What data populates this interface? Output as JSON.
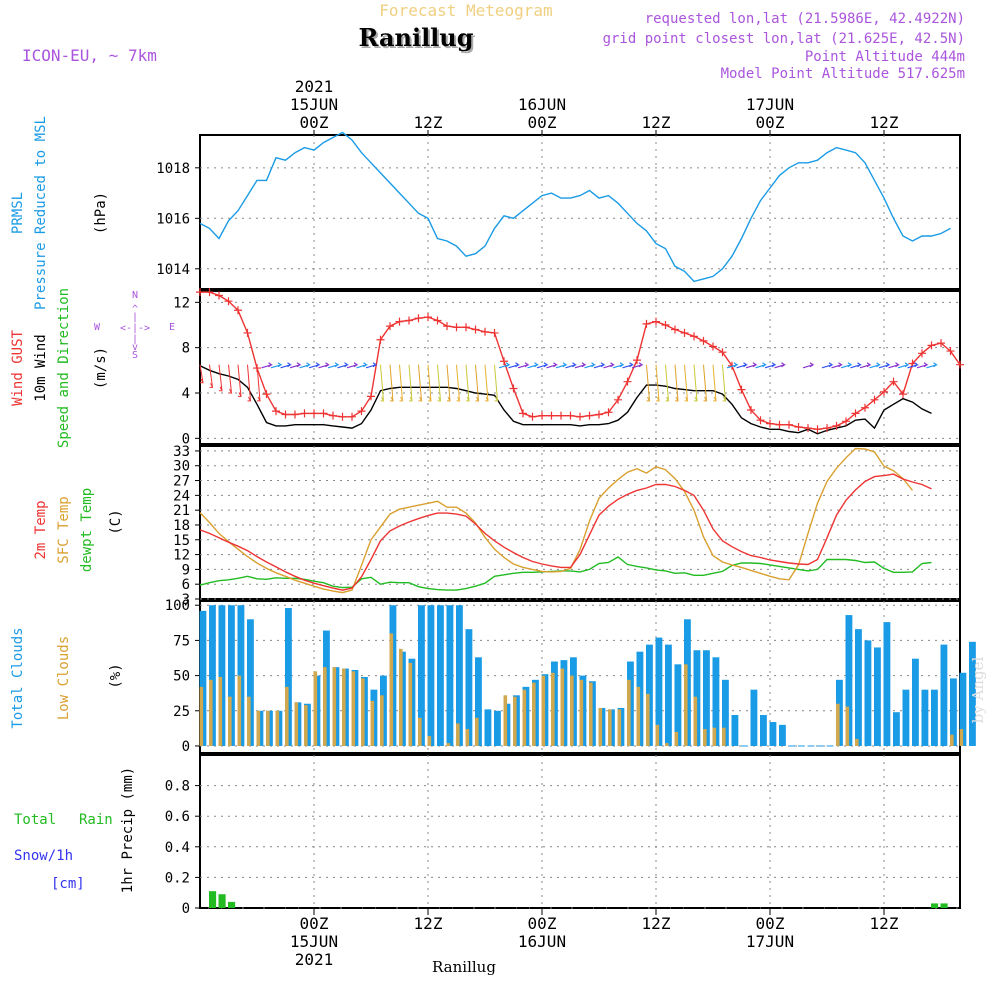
{
  "header": {
    "title": "Forecast Meteogram",
    "station": "Ranillug",
    "model": "ICON-EU, ~ 7km",
    "requested": "requested lon,lat (21.5986E, 42.4922N)",
    "gridpoint": "grid point closest lon,lat (21.625E, 42.5N)",
    "altitude": "Point Altitude 444m",
    "model_altitude": "Model Point Altitude 517.625m",
    "bottom_label": "Ranillug",
    "watermark": "by Angel"
  },
  "time_axis": {
    "top_labels": [
      {
        "t": 12,
        "lines": [
          "2021",
          "15JUN",
          "00Z"
        ]
      },
      {
        "t": 24,
        "lines": [
          "12Z"
        ]
      },
      {
        "t": 36,
        "lines": [
          "16JUN",
          "00Z"
        ]
      },
      {
        "t": 48,
        "lines": [
          "12Z"
        ]
      },
      {
        "t": 60,
        "lines": [
          "17JUN",
          "00Z"
        ]
      },
      {
        "t": 72,
        "lines": [
          "12Z"
        ]
      }
    ],
    "bottom_labels": [
      {
        "t": 12,
        "lines": [
          "00Z",
          "15JUN",
          "2021"
        ]
      },
      {
        "t": 24,
        "lines": [
          "12Z"
        ]
      },
      {
        "t": 36,
        "lines": [
          "00Z",
          "16JUN"
        ]
      },
      {
        "t": 48,
        "lines": [
          "12Z"
        ]
      },
      {
        "t": 60,
        "lines": [
          "00Z",
          "17JUN"
        ]
      },
      {
        "t": 72,
        "lines": [
          "12Z"
        ]
      }
    ]
  },
  "labels": {
    "pressure": [
      "PRMSL",
      "Pressure Reduced to MSL",
      "(hPa)"
    ],
    "wind": [
      "Wind GUST",
      "10m Wind",
      "Speed and Direction",
      "(m/s)"
    ],
    "compass": [
      "N",
      "W",
      "E",
      "S"
    ],
    "temp": [
      "2m Temp",
      "SFC Temp",
      "dewpt Temp",
      "(C)"
    ],
    "cloud": [
      "Total Clouds",
      "Low Clouds",
      "(%)"
    ],
    "precip": [
      "Total",
      "Rain",
      "Snow/1h",
      "[cm]",
      "1hr Precip (mm)"
    ]
  },
  "colors": {
    "pressure": "#1a9be6",
    "gust": "#ee3333",
    "wind10m": "#000000",
    "t2m": "#ee3333",
    "sfc": "#d9a030",
    "dewpt": "#22bb22",
    "total_cloud": "#1a9be6",
    "low_cloud": "#d0a850",
    "rain": "#22bb22",
    "purple": "#aa55dd",
    "blue_text": "#3333ee"
  },
  "chart_data": [
    {
      "type": "line",
      "title": "PRMSL Pressure Reduced to MSL",
      "ylabel": "(hPa)",
      "ylim": [
        1013.2,
        1019.3
      ],
      "yticks": [
        1014,
        1016,
        1018
      ],
      "x_unit": "hours since 14JUN 12Z",
      "series": [
        {
          "name": "PRMSL",
          "x_start": 0,
          "step": 1,
          "values": [
            1015.8,
            1015.6,
            1015.2,
            1015.9,
            1016.3,
            1016.9,
            1017.5,
            1017.5,
            1018.4,
            1018.3,
            1018.6,
            1018.8,
            1018.7,
            1019.0,
            1019.2,
            1019.4,
            1019.1,
            1018.6,
            1018.2,
            1017.8,
            1017.4,
            1017.0,
            1016.6,
            1016.2,
            1016.0,
            1015.2,
            1015.1,
            1014.9,
            1014.5,
            1014.6,
            1014.9,
            1015.6,
            1016.1,
            1016.0,
            1016.3,
            1016.6,
            1016.9,
            1017.0,
            1016.8,
            1016.8,
            1016.9,
            1017.1,
            1016.8,
            1016.9,
            1016.6,
            1016.2,
            1015.8,
            1015.5,
            1015.0,
            1014.8,
            1014.1,
            1013.9,
            1013.5,
            1013.6,
            1013.7,
            1014.0,
            1014.5,
            1015.2,
            1016.0,
            1016.7,
            1017.2,
            1017.7,
            1018.0,
            1018.2,
            1018.2,
            1018.3,
            1018.6,
            1018.8,
            1018.7,
            1018.6,
            1018.2,
            1017.5,
            1016.8,
            1016.0,
            1015.3,
            1015.1,
            1015.3,
            1015.3,
            1015.4,
            1015.6
          ]
        }
      ]
    },
    {
      "type": "line",
      "title": "Wind GUST / 10m Wind Speed and Direction",
      "ylabel": "(m/s)",
      "ylim": [
        -0.5,
        13
      ],
      "yticks": [
        0,
        4,
        8,
        12
      ],
      "series": [
        {
          "name": "Wind GUST",
          "x_start": 0,
          "step": 1,
          "values": [
            12.9,
            12.9,
            12.6,
            12.1,
            11.3,
            9.3,
            6.2,
            3.9,
            2.4,
            2.1,
            2.1,
            2.2,
            2.2,
            2.2,
            2.0,
            1.9,
            1.9,
            2.4,
            3.7,
            8.7,
            9.9,
            10.3,
            10.4,
            10.6,
            10.7,
            10.4,
            9.9,
            9.8,
            9.8,
            9.6,
            9.4,
            9.3,
            6.8,
            4.4,
            2.2,
            1.9,
            2.0,
            2.0,
            2.0,
            2.0,
            1.9,
            2.0,
            2.1,
            2.3,
            3.4,
            5.0,
            6.9,
            10.1,
            10.3,
            10.0,
            9.6,
            9.3,
            9.0,
            8.6,
            8.1,
            7.6,
            6.4,
            4.3,
            2.5,
            1.6,
            1.3,
            1.2,
            1.2,
            1.0,
            0.9,
            0.8,
            0.9,
            1.1,
            1.5,
            2.2,
            2.7,
            3.4,
            4.1,
            5.0,
            3.9,
            6.6,
            7.5,
            8.2,
            8.4,
            7.7,
            6.5
          ]
        },
        {
          "name": "10m Wind",
          "x_start": 0,
          "step": 1,
          "values": [
            6.4,
            6.0,
            5.7,
            5.5,
            5.2,
            4.5,
            3.0,
            1.4,
            1.1,
            1.1,
            1.2,
            1.2,
            1.2,
            1.2,
            1.1,
            1.0,
            0.9,
            1.3,
            2.5,
            4.2,
            4.4,
            4.5,
            4.5,
            4.5,
            4.5,
            4.5,
            4.5,
            4.4,
            4.2,
            4.0,
            3.9,
            3.8,
            2.5,
            1.5,
            1.2,
            1.2,
            1.2,
            1.2,
            1.2,
            1.2,
            1.1,
            1.2,
            1.2,
            1.3,
            1.6,
            2.3,
            3.6,
            4.7,
            4.7,
            4.6,
            4.4,
            4.3,
            4.2,
            4.2,
            4.2,
            3.9,
            3.0,
            1.8,
            1.3,
            1.0,
            0.8,
            0.8,
            0.6,
            0.5,
            0.8,
            0.4,
            0.7,
            0.9,
            1.1,
            1.6,
            1.7,
            0.9,
            2.5,
            3.0,
            3.5,
            3.2,
            2.6,
            2.2
          ]
        }
      ]
    },
    {
      "type": "line",
      "title": "2m Temp / SFC Temp / dewpt Temp",
      "ylabel": "(C)",
      "ylim": [
        3,
        34
      ],
      "yticks": [
        3,
        6,
        9,
        12,
        15,
        18,
        21,
        24,
        27,
        30,
        33
      ],
      "series": [
        {
          "name": "2m Temp",
          "x_start": 0,
          "step": 1,
          "values": [
            17.0,
            16.3,
            15.4,
            14.5,
            13.7,
            12.8,
            11.6,
            10.5,
            9.5,
            8.5,
            7.6,
            6.8,
            6.2,
            5.7,
            5.2,
            4.8,
            5.2,
            7.5,
            11.0,
            14.8,
            16.8,
            17.8,
            18.6,
            19.3,
            19.9,
            20.4,
            20.4,
            20.2,
            19.8,
            18.2,
            16.3,
            14.8,
            13.5,
            12.4,
            11.4,
            10.6,
            10.1,
            9.7,
            9.4,
            9.4,
            12.0,
            16.0,
            20.0,
            21.8,
            23.2,
            24.2,
            25.0,
            25.5,
            26.2,
            26.2,
            25.8,
            25.0,
            24.0,
            21.0,
            17.2,
            14.8,
            13.6,
            12.6,
            11.8,
            11.4,
            10.9,
            10.6,
            10.3,
            10.1,
            10.0,
            11.0,
            15.4,
            20.0,
            23.0,
            25.1,
            26.8,
            27.8,
            28.0,
            28.3,
            27.3,
            26.7,
            26.2,
            25.3
          ]
        },
        {
          "name": "SFC Temp",
          "x_start": 0,
          "step": 1,
          "values": [
            20.5,
            18.5,
            16.3,
            14.6,
            13.1,
            11.6,
            10.3,
            9.2,
            8.3,
            7.6,
            6.8,
            6.2,
            5.6,
            5.0,
            4.6,
            4.3,
            4.8,
            9.8,
            15.0,
            17.6,
            20.2,
            21.2,
            21.6,
            22.0,
            22.4,
            22.8,
            21.6,
            21.6,
            20.4,
            18.4,
            15.5,
            13.1,
            11.4,
            10.1,
            9.4,
            9.0,
            8.6,
            8.5,
            8.6,
            9.2,
            13.0,
            18.8,
            23.4,
            25.5,
            27.2,
            28.7,
            29.4,
            28.5,
            29.8,
            29.2,
            27.4,
            24.8,
            21.0,
            15.6,
            11.8,
            10.5,
            9.9,
            9.4,
            8.8,
            8.2,
            7.6,
            7.1,
            6.9,
            9.9,
            16.3,
            22.4,
            26.8,
            29.5,
            31.6,
            33.5,
            33.4,
            32.8,
            29.9,
            29.0,
            27.4,
            25.0
          ]
        },
        {
          "name": "dewpt Temp",
          "x_start": 0,
          "step": 1,
          "values": [
            5.8,
            6.3,
            6.7,
            6.9,
            7.2,
            7.6,
            7.1,
            7.0,
            7.3,
            7.2,
            7.2,
            7.0,
            6.6,
            6.3,
            5.6,
            5.3,
            5.4,
            7.1,
            7.4,
            6.0,
            6.4,
            6.3,
            6.3,
            5.5,
            5.1,
            4.9,
            4.8,
            4.8,
            5.1,
            5.6,
            6.2,
            7.6,
            7.9,
            8.2,
            8.4,
            8.4,
            8.5,
            8.6,
            8.7,
            8.7,
            8.5,
            9.0,
            10.2,
            10.4,
            11.5,
            10.0,
            9.6,
            9.3,
            8.9,
            8.7,
            8.2,
            8.3,
            7.8,
            7.8,
            8.2,
            8.6,
            9.8,
            10.3,
            10.3,
            10.2,
            9.9,
            9.6,
            9.3,
            9.0,
            8.7,
            9.0,
            11.0,
            11.0,
            11.0,
            10.8,
            10.4,
            10.5,
            9.2,
            8.4,
            8.4,
            8.5,
            10.2,
            10.4
          ]
        }
      ]
    },
    {
      "type": "bar",
      "title": "Total Clouds / Low Clouds",
      "ylabel": "(%)",
      "ylim": [
        -5,
        103
      ],
      "yticks": [
        0,
        25,
        50,
        75,
        100
      ],
      "series": [
        {
          "name": "Total Clouds",
          "x_start": 0,
          "step": 1,
          "values": [
            96,
            100,
            100,
            100,
            100,
            90,
            25,
            25,
            25,
            98,
            31,
            30,
            50,
            82,
            56,
            55,
            54,
            49,
            40,
            50,
            100,
            67,
            62,
            100,
            100,
            100,
            100,
            100,
            83,
            63,
            26,
            25,
            30,
            36,
            42,
            47,
            51,
            60,
            61,
            63,
            50,
            46,
            27,
            26,
            27,
            60,
            67,
            72,
            77,
            72,
            58,
            90,
            68,
            68,
            63,
            47,
            22,
            0,
            40,
            22,
            17,
            15,
            0,
            0,
            0,
            0,
            0,
            47,
            93,
            83,
            75,
            70,
            88,
            24,
            40,
            62,
            40,
            40,
            72,
            48,
            52,
            74
          ]
        },
        {
          "name": "Low Clouds",
          "x_start": 0,
          "step": 1,
          "values": [
            42,
            47,
            49,
            35,
            50,
            35,
            25,
            25,
            25,
            42,
            31,
            29,
            53,
            56,
            56,
            55,
            53,
            48,
            32,
            36,
            80,
            69,
            59,
            20,
            7,
            0,
            2,
            16,
            12,
            20,
            0,
            0,
            36,
            35,
            40,
            45,
            50,
            52,
            55,
            50,
            47,
            45,
            27,
            26,
            26,
            47,
            42,
            37,
            15,
            2,
            10,
            58,
            35,
            12,
            13,
            13,
            0,
            0,
            0,
            0,
            0,
            0,
            0,
            0,
            0,
            0,
            0,
            30,
            28,
            5,
            0,
            0,
            0,
            0,
            0,
            0,
            0,
            0,
            0,
            8,
            12
          ]
        }
      ]
    },
    {
      "type": "bar",
      "title": "Total Rain / Snow 1hr Precip",
      "ylabel": "1hr Precip (mm)",
      "ylim": [
        0,
        1.0
      ],
      "yticks": [
        0,
        0.2,
        0.4,
        0.6,
        0.8
      ],
      "series": [
        {
          "name": "Total Rain",
          "x_start": 0,
          "step": 1,
          "values": [
            0,
            0.11,
            0.09,
            0.04,
            0,
            0,
            0,
            0,
            0,
            0,
            0,
            0,
            0,
            0,
            0,
            0,
            0,
            0,
            0,
            0,
            0,
            0,
            0,
            0,
            0,
            0,
            0,
            0,
            0,
            0,
            0,
            0,
            0,
            0,
            0,
            0,
            0,
            0,
            0,
            0,
            0,
            0,
            0,
            0,
            0,
            0,
            0,
            0,
            0,
            0,
            0,
            0,
            0,
            0,
            0,
            0,
            0,
            0,
            0,
            0,
            0,
            0,
            0,
            0,
            0,
            0,
            0,
            0,
            0,
            0,
            0,
            0,
            0,
            0,
            0,
            0,
            0,
            0.03,
            0.03,
            0
          ]
        },
        {
          "name": "Snow/1h",
          "x_start": 0,
          "step": 1,
          "values": []
        }
      ]
    }
  ]
}
